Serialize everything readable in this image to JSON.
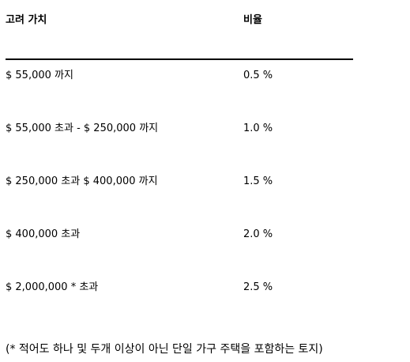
{
  "table": {
    "headers": {
      "value": "고려 가치",
      "rate": "비율"
    },
    "rows": [
      {
        "range": "$ 55,000 까지",
        "rate": "0.5 %"
      },
      {
        "range": "$ 55,000 초과 - $ 250,000 까지",
        "rate": "1.0 %"
      },
      {
        "range": "$ 250,000 초과 $ 400,000 까지",
        "rate": "1.5 %"
      },
      {
        "range": "$ 400,000 초과",
        "rate": "2.0 %"
      },
      {
        "range": "$ 2,000,000 * 초과",
        "rate": "2.5 %"
      }
    ]
  },
  "footnote": "(* 적어도 하나 및 두개 이상이 아닌 단일 가구 주택을 포함하는 토지)"
}
